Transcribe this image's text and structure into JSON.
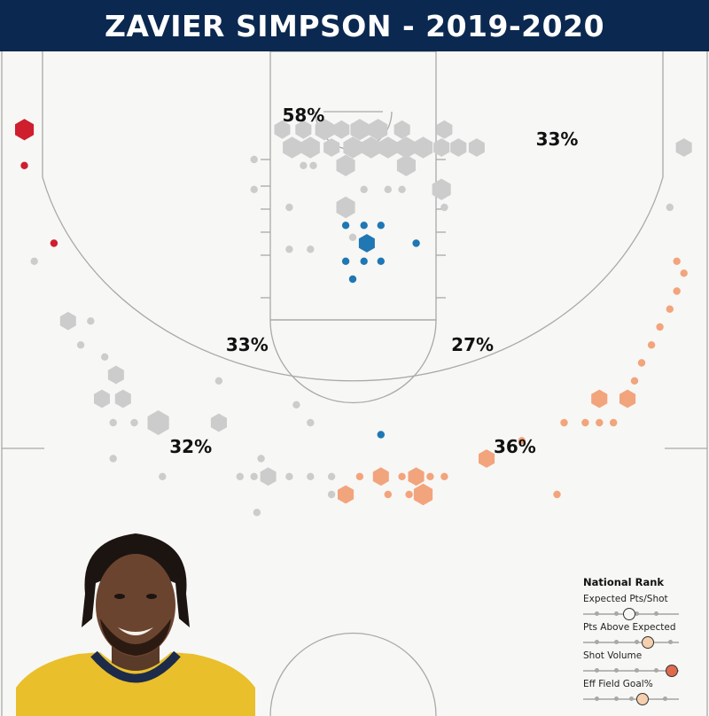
{
  "title": "ZAVIER SIMPSON - 2019-2020",
  "chart_data": {
    "type": "scatter",
    "title": "ZAVIER SIMPSON - 2019-2020",
    "subtitle": "",
    "xlabel": "",
    "ylabel": "",
    "x_range": [
      -25,
      25
    ],
    "y_range": [
      -4,
      47
    ],
    "color_scale": {
      "low": "#1f77b4",
      "neutral": "#cccccc",
      "medium_high": "#f2a47c",
      "high": "#cf1e2e"
    },
    "zone_labels": [
      {
        "zone": "paint",
        "label": "58%",
        "x": -3.5,
        "y": 0.8
      },
      {
        "zone": "right-corner-mid",
        "label": "33%",
        "x": 14.5,
        "y": 2.8
      },
      {
        "zone": "left-elbow-mid",
        "label": "33%",
        "x": -7.5,
        "y": 20
      },
      {
        "zone": "right-elbow-mid",
        "label": "27%",
        "x": 8.5,
        "y": 20
      },
      {
        "zone": "left-wing-three",
        "label": "32%",
        "x": -11.5,
        "y": 28.5
      },
      {
        "zone": "right-wing-three",
        "label": "36%",
        "x": 11.5,
        "y": 28.5
      }
    ],
    "shots": [
      {
        "x": -23.3,
        "y": 1.5,
        "size": 0.8,
        "color": "high"
      },
      {
        "x": -23.3,
        "y": 4.5,
        "size": 0.3,
        "color": "high"
      },
      {
        "x": -21.2,
        "y": 11.0,
        "size": 0.3,
        "color": "high"
      },
      {
        "x": -22.6,
        "y": 12.5,
        "size": 0.3,
        "color": "neutral"
      },
      {
        "x": -20.2,
        "y": 17.5,
        "size": 0.6,
        "color": "neutral"
      },
      {
        "x": -18.6,
        "y": 17.5,
        "size": 0.3,
        "color": "neutral"
      },
      {
        "x": -19.3,
        "y": 19.5,
        "size": 0.3,
        "color": "neutral"
      },
      {
        "x": -17.6,
        "y": 20.5,
        "size": 0.3,
        "color": "neutral"
      },
      {
        "x": -16.8,
        "y": 22.0,
        "size": 0.6,
        "color": "neutral"
      },
      {
        "x": -17.8,
        "y": 24.0,
        "size": 0.6,
        "color": "neutral"
      },
      {
        "x": -16.3,
        "y": 24.0,
        "size": 0.6,
        "color": "neutral"
      },
      {
        "x": -17.0,
        "y": 26.0,
        "size": 0.3,
        "color": "neutral"
      },
      {
        "x": -15.5,
        "y": 26.0,
        "size": 0.3,
        "color": "neutral"
      },
      {
        "x": -13.8,
        "y": 26.0,
        "size": 1.0,
        "color": "neutral"
      },
      {
        "x": -17.0,
        "y": 29.0,
        "size": 0.3,
        "color": "neutral"
      },
      {
        "x": -13.5,
        "y": 30.5,
        "size": 0.3,
        "color": "neutral"
      },
      {
        "x": -9.5,
        "y": 22.5,
        "size": 0.3,
        "color": "neutral"
      },
      {
        "x": -9.5,
        "y": 26.0,
        "size": 0.6,
        "color": "neutral"
      },
      {
        "x": -6.5,
        "y": 29.0,
        "size": 0.3,
        "color": "neutral"
      },
      {
        "x": -8.0,
        "y": 30.5,
        "size": 0.3,
        "color": "neutral"
      },
      {
        "x": -7.0,
        "y": 30.5,
        "size": 0.3,
        "color": "neutral"
      },
      {
        "x": -6.0,
        "y": 30.5,
        "size": 0.6,
        "color": "neutral"
      },
      {
        "x": -4.5,
        "y": 30.5,
        "size": 0.3,
        "color": "neutral"
      },
      {
        "x": -3.0,
        "y": 30.5,
        "size": 0.3,
        "color": "neutral"
      },
      {
        "x": -1.5,
        "y": 30.5,
        "size": 0.3,
        "color": "neutral"
      },
      {
        "x": -1.5,
        "y": 32.0,
        "size": 0.3,
        "color": "neutral"
      },
      {
        "x": -6.8,
        "y": 33.5,
        "size": 0.3,
        "color": "neutral"
      },
      {
        "x": -4.0,
        "y": 24.5,
        "size": 0.3,
        "color": "neutral"
      },
      {
        "x": -3.0,
        "y": 26.0,
        "size": 0.3,
        "color": "neutral"
      },
      {
        "x": -7.0,
        "y": 4.0,
        "size": 0.3,
        "color": "neutral"
      },
      {
        "x": -7.0,
        "y": 6.5,
        "size": 0.3,
        "color": "neutral"
      },
      {
        "x": -4.5,
        "y": 8.0,
        "size": 0.3,
        "color": "neutral"
      },
      {
        "x": -4.5,
        "y": 11.5,
        "size": 0.3,
        "color": "neutral"
      },
      {
        "x": -3.0,
        "y": 11.5,
        "size": 0.3,
        "color": "neutral"
      },
      {
        "x": -5.0,
        "y": 1.5,
        "size": 0.6,
        "color": "neutral"
      },
      {
        "x": -3.5,
        "y": 1.5,
        "size": 0.6,
        "color": "neutral"
      },
      {
        "x": -2.0,
        "y": 1.5,
        "size": 0.8,
        "color": "neutral"
      },
      {
        "x": -0.8,
        "y": 1.5,
        "size": 0.6,
        "color": "neutral"
      },
      {
        "x": 0.5,
        "y": 1.5,
        "size": 0.8,
        "color": "neutral"
      },
      {
        "x": 1.8,
        "y": 1.5,
        "size": 0.8,
        "color": "neutral"
      },
      {
        "x": 3.5,
        "y": 1.5,
        "size": 0.6,
        "color": "neutral"
      },
      {
        "x": -4.3,
        "y": 3.0,
        "size": 0.8,
        "color": "neutral"
      },
      {
        "x": -3.0,
        "y": 3.0,
        "size": 0.8,
        "color": "neutral"
      },
      {
        "x": -1.5,
        "y": 3.0,
        "size": 0.6,
        "color": "neutral"
      },
      {
        "x": 0.0,
        "y": 3.0,
        "size": 0.8,
        "color": "neutral"
      },
      {
        "x": 1.3,
        "y": 3.0,
        "size": 0.8,
        "color": "neutral"
      },
      {
        "x": 2.5,
        "y": 3.0,
        "size": 0.8,
        "color": "neutral"
      },
      {
        "x": 3.8,
        "y": 3.0,
        "size": 0.8,
        "color": "neutral"
      },
      {
        "x": 5.0,
        "y": 3.0,
        "size": 0.8,
        "color": "neutral"
      },
      {
        "x": 6.3,
        "y": 3.0,
        "size": 0.6,
        "color": "neutral"
      },
      {
        "x": 7.5,
        "y": 3.0,
        "size": 0.6,
        "color": "neutral"
      },
      {
        "x": 8.8,
        "y": 3.0,
        "size": 0.6,
        "color": "neutral"
      },
      {
        "x": 6.5,
        "y": 1.5,
        "size": 0.6,
        "color": "neutral"
      },
      {
        "x": -3.5,
        "y": 4.5,
        "size": 0.3,
        "color": "neutral"
      },
      {
        "x": -2.8,
        "y": 4.5,
        "size": 0.3,
        "color": "neutral"
      },
      {
        "x": -0.5,
        "y": 4.5,
        "size": 0.8,
        "color": "neutral"
      },
      {
        "x": 3.8,
        "y": 4.5,
        "size": 0.8,
        "color": "neutral"
      },
      {
        "x": 6.3,
        "y": 6.5,
        "size": 0.8,
        "color": "neutral"
      },
      {
        "x": 0.8,
        "y": 6.5,
        "size": 0.3,
        "color": "neutral"
      },
      {
        "x": 2.5,
        "y": 6.5,
        "size": 0.3,
        "color": "neutral"
      },
      {
        "x": 3.5,
        "y": 6.5,
        "size": 0.3,
        "color": "neutral"
      },
      {
        "x": -0.5,
        "y": 8.0,
        "size": 0.8,
        "color": "neutral"
      },
      {
        "x": 6.5,
        "y": 8.0,
        "size": 0.3,
        "color": "neutral"
      },
      {
        "x": 0.0,
        "y": 10.5,
        "size": 0.3,
        "color": "neutral"
      },
      {
        "x": 23.5,
        "y": 3.0,
        "size": 0.6,
        "color": "neutral"
      },
      {
        "x": 22.5,
        "y": 8.0,
        "size": 0.3,
        "color": "neutral"
      },
      {
        "x": -0.5,
        "y": 9.5,
        "size": 0.3,
        "color": "low"
      },
      {
        "x": 0.8,
        "y": 9.5,
        "size": 0.3,
        "color": "low"
      },
      {
        "x": 2.0,
        "y": 9.5,
        "size": 0.3,
        "color": "low"
      },
      {
        "x": 1.0,
        "y": 11.0,
        "size": 0.6,
        "color": "low"
      },
      {
        "x": 4.5,
        "y": 11.0,
        "size": 0.3,
        "color": "low"
      },
      {
        "x": -0.5,
        "y": 12.5,
        "size": 0.3,
        "color": "low"
      },
      {
        "x": 0.8,
        "y": 12.5,
        "size": 0.3,
        "color": "low"
      },
      {
        "x": 2.0,
        "y": 12.5,
        "size": 0.3,
        "color": "low"
      },
      {
        "x": 0.0,
        "y": 14.0,
        "size": 0.3,
        "color": "low"
      },
      {
        "x": 2.0,
        "y": 27.0,
        "size": 0.3,
        "color": "low"
      },
      {
        "x": 0.5,
        "y": 30.5,
        "size": 0.3,
        "color": "medium_high"
      },
      {
        "x": 2.0,
        "y": 30.5,
        "size": 0.6,
        "color": "medium_high"
      },
      {
        "x": 3.5,
        "y": 30.5,
        "size": 0.3,
        "color": "medium_high"
      },
      {
        "x": 4.5,
        "y": 30.5,
        "size": 0.6,
        "color": "medium_high"
      },
      {
        "x": 5.5,
        "y": 30.5,
        "size": 0.3,
        "color": "medium_high"
      },
      {
        "x": 6.5,
        "y": 30.5,
        "size": 0.3,
        "color": "medium_high"
      },
      {
        "x": -0.5,
        "y": 32.0,
        "size": 0.6,
        "color": "medium_high"
      },
      {
        "x": 2.5,
        "y": 32.0,
        "size": 0.3,
        "color": "medium_high"
      },
      {
        "x": 4.0,
        "y": 32.0,
        "size": 0.3,
        "color": "medium_high"
      },
      {
        "x": 5.0,
        "y": 32.0,
        "size": 0.8,
        "color": "medium_high"
      },
      {
        "x": 9.5,
        "y": 29.0,
        "size": 0.6,
        "color": "medium_high"
      },
      {
        "x": 12.0,
        "y": 27.5,
        "size": 0.3,
        "color": "medium_high"
      },
      {
        "x": 14.5,
        "y": 32.0,
        "size": 0.3,
        "color": "medium_high"
      },
      {
        "x": 15.0,
        "y": 26.0,
        "size": 0.3,
        "color": "medium_high"
      },
      {
        "x": 16.5,
        "y": 26.0,
        "size": 0.3,
        "color": "medium_high"
      },
      {
        "x": 17.5,
        "y": 26.0,
        "size": 0.3,
        "color": "medium_high"
      },
      {
        "x": 18.5,
        "y": 26.0,
        "size": 0.3,
        "color": "medium_high"
      },
      {
        "x": 17.5,
        "y": 24.0,
        "size": 0.6,
        "color": "medium_high"
      },
      {
        "x": 19.5,
        "y": 24.0,
        "size": 0.6,
        "color": "medium_high"
      },
      {
        "x": 20.0,
        "y": 22.5,
        "size": 0.3,
        "color": "medium_high"
      },
      {
        "x": 20.5,
        "y": 21.0,
        "size": 0.3,
        "color": "medium_high"
      },
      {
        "x": 21.2,
        "y": 19.5,
        "size": 0.3,
        "color": "medium_high"
      },
      {
        "x": 21.8,
        "y": 18.0,
        "size": 0.3,
        "color": "medium_high"
      },
      {
        "x": 22.5,
        "y": 16.5,
        "size": 0.3,
        "color": "medium_high"
      },
      {
        "x": 23.0,
        "y": 15.0,
        "size": 0.3,
        "color": "medium_high"
      },
      {
        "x": 23.5,
        "y": 13.5,
        "size": 0.3,
        "color": "medium_high"
      },
      {
        "x": 23.0,
        "y": 12.5,
        "size": 0.3,
        "color": "medium_high"
      }
    ]
  },
  "legend": {
    "title": "National Rank",
    "items": [
      {
        "label": "Expected Pts/Shot",
        "value": 0.48,
        "color": "#f7f7f5"
      },
      {
        "label": "Pts Above Expected",
        "value": 0.68,
        "color": "#f5cfae"
      },
      {
        "label": "Shot Volume",
        "value": 0.93,
        "color": "#e06a4e"
      },
      {
        "label": "Eff Field Goal%",
        "value": 0.62,
        "color": "#f5cfae"
      }
    ]
  },
  "photo_icon": "player-headshot"
}
